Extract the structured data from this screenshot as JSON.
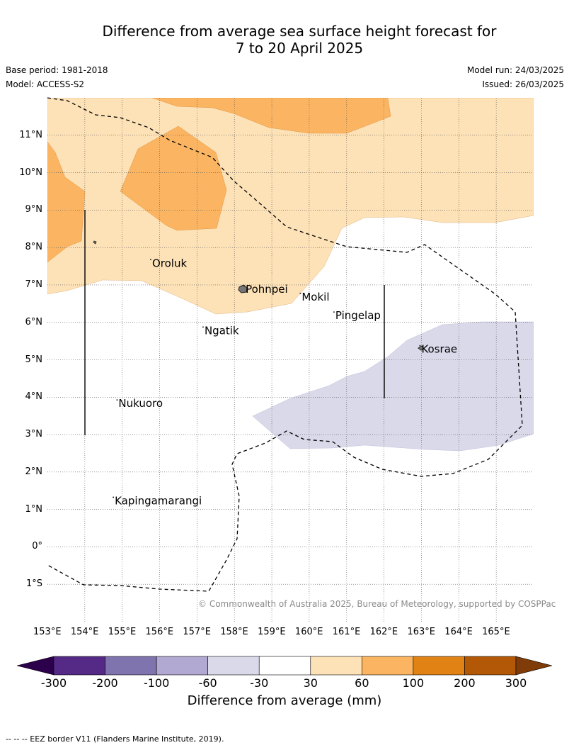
{
  "title_line1": "Difference from average sea surface height forecast for",
  "title_line2": "7 to 20 April 2025",
  "base_period": "Base period: 1981-2018",
  "model": "Model: ACCESS-S2",
  "model_run": "Model run: 24/03/2025",
  "issued": "Issued: 26/03/2025",
  "copyright": "© Commonwealth of Australia 2025, Bureau of Meteorology, supported by COSPPac",
  "footnote": "--  --  -- EEZ border V11 (Flanders Marine Institute, 2019).",
  "lon_labels": [
    "153°E",
    "154°E",
    "155°E",
    "156°E",
    "157°E",
    "158°E",
    "159°E",
    "160°E",
    "161°E",
    "162°E",
    "163°E",
    "164°E",
    "165°E"
  ],
  "lat_labels": [
    "11°N",
    "10°N",
    "9°N",
    "8°N",
    "7°N",
    "6°N",
    "5°N",
    "4°N",
    "3°N",
    "2°N",
    "1°N",
    "0°",
    "1°S"
  ],
  "places": [
    {
      "name": "Oroluk",
      "lon": 155.8,
      "lat": 7.6
    },
    {
      "name": "Pohnpei",
      "lon": 158.3,
      "lat": 6.9
    },
    {
      "name": "Mokil",
      "lon": 159.8,
      "lat": 6.7
    },
    {
      "name": "Pingelap",
      "lon": 160.7,
      "lat": 6.2
    },
    {
      "name": "Ngatik",
      "lon": 157.2,
      "lat": 5.8
    },
    {
      "name": "Kosrae",
      "lon": 163.0,
      "lat": 5.3
    },
    {
      "name": "Nukuoro",
      "lon": 154.9,
      "lat": 3.85
    },
    {
      "name": "Kapingamarangi",
      "lon": 154.8,
      "lat": 1.25
    }
  ],
  "colorbar": {
    "title": "Difference from average (mm)",
    "ticks": [
      "-300",
      "-200",
      "-100",
      "-60",
      "-30",
      "30",
      "60",
      "100",
      "200",
      "300"
    ],
    "colors": [
      "#552a87",
      "#7f74ad",
      "#b1a9d2",
      "#d9d9ea",
      "#ffffff",
      "#fde1b7",
      "#fbb562",
      "#e08214",
      "#b35806"
    ],
    "under_color": "#2d004b",
    "over_color": "#7f3b08"
  },
  "map": {
    "lon_range": [
      153,
      166
    ],
    "lat_range": [
      -2,
      12
    ],
    "colors": {
      "light_orange": "#fde1b7",
      "orange": "#fbb562",
      "lavender": "#d9d9ea"
    }
  }
}
